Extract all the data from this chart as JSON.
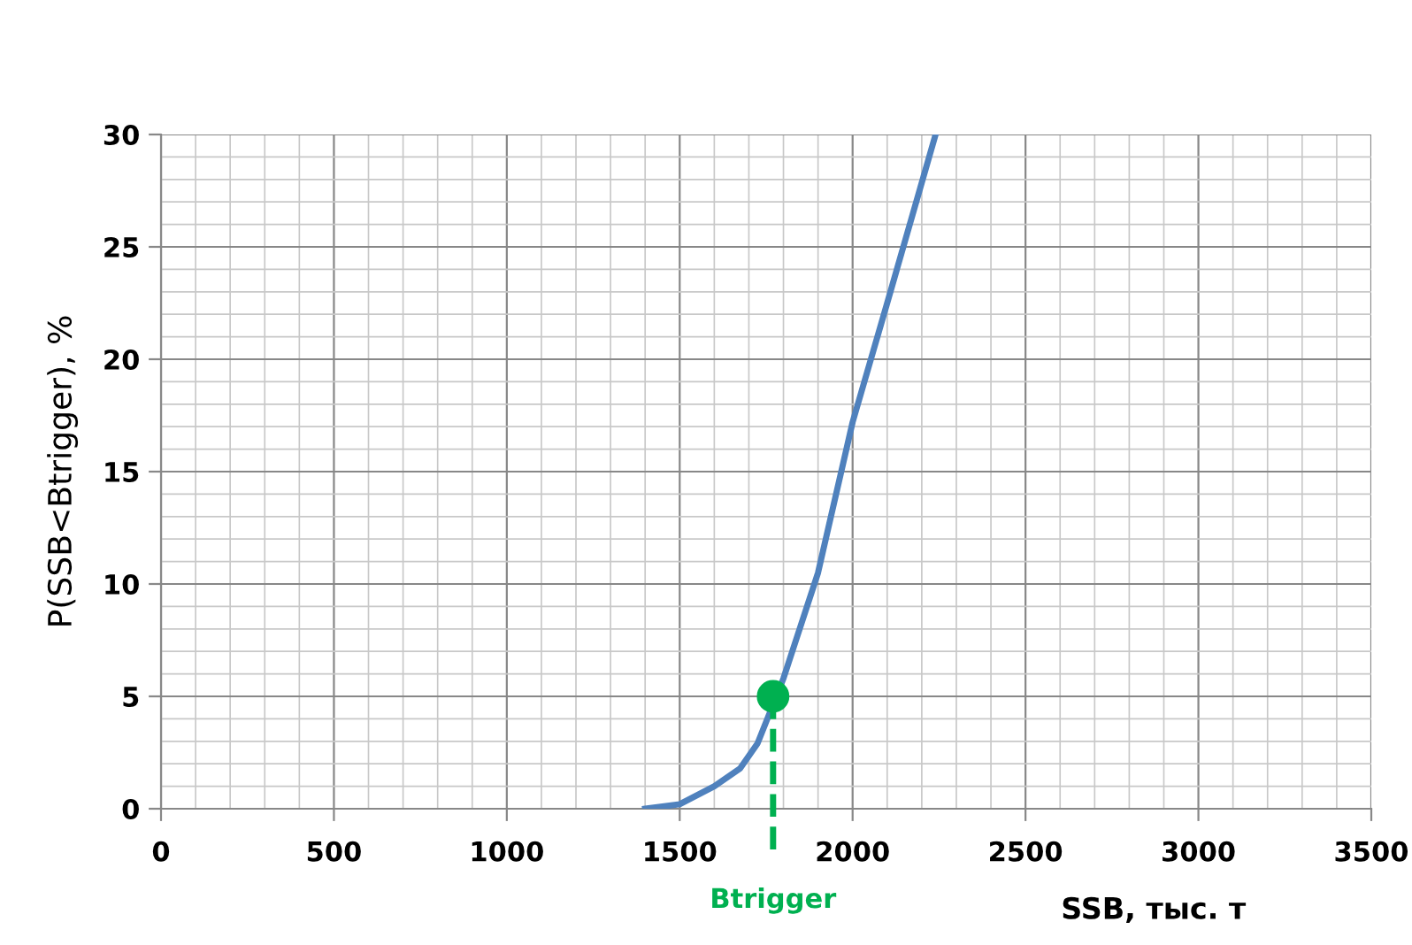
{
  "chart_data": {
    "type": "line",
    "xlabel": "SSB, тыс. т",
    "ylabel": "P(SSB<Btrigger), %",
    "xlim": [
      0,
      3500
    ],
    "xticks": [
      0,
      500,
      1000,
      1500,
      2000,
      2500,
      3000,
      3500
    ],
    "ylim": [
      0,
      30
    ],
    "yticks": [
      0,
      5,
      10,
      15,
      20,
      25,
      30
    ],
    "grid": true,
    "marker": "none",
    "line_style": "solid",
    "series": [
      {
        "color": "#4f81bd",
        "x": [
          1400,
          1500,
          1600,
          1675,
          1725,
          1800,
          1900,
          2000,
          2100,
          2240
        ],
        "values": [
          0,
          0.2,
          1,
          1.8,
          2.9,
          5.8,
          10.5,
          17.2,
          22.5,
          30
        ]
      },
      {
        "type": "scatter",
        "marker": "circle",
        "color": "#00b050",
        "x": [
          1770
        ],
        "values": [
          5
        ]
      }
    ],
    "ref_lines": [
      {
        "axis": "x",
        "value": 1770,
        "label": "Btrigger",
        "color": "#00b050",
        "line_style": "dashed"
      }
    ]
  }
}
